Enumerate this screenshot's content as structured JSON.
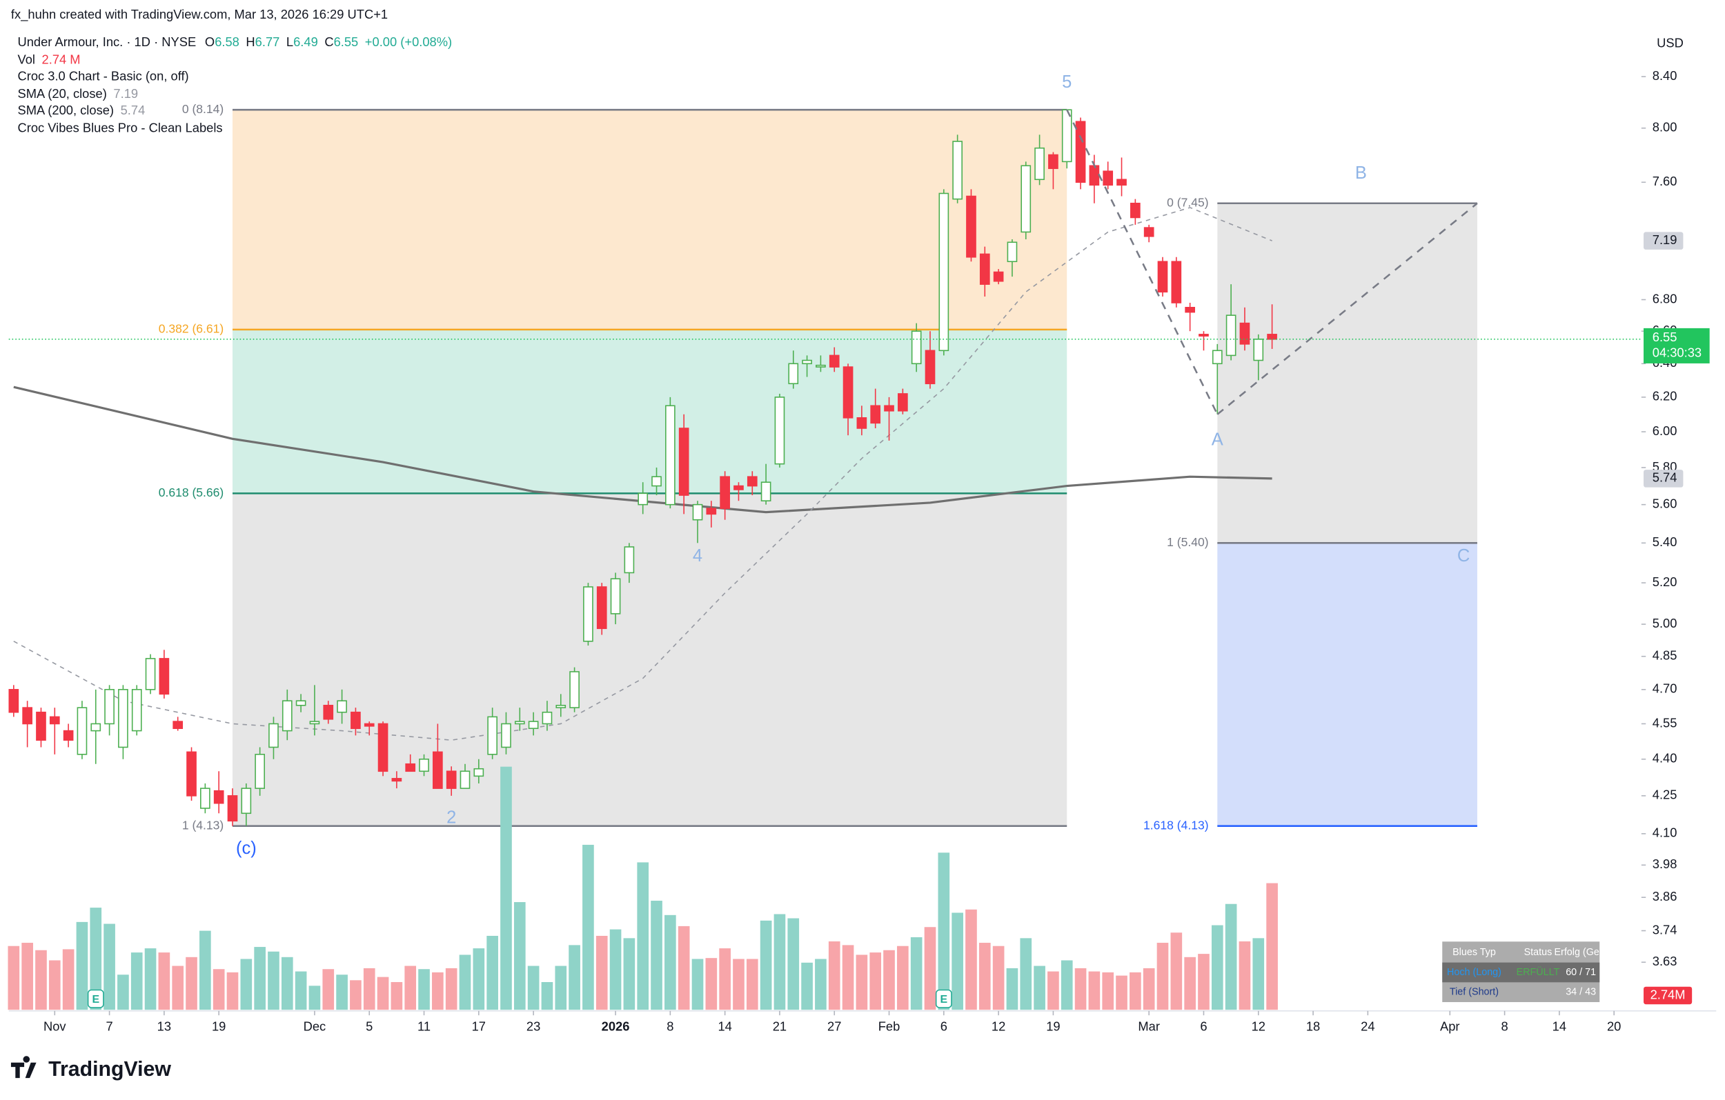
{
  "header": {
    "credit": "fx_huhn created with TradingView.com, Mar 13, 2026 16:29 UTC+1",
    "currency": "USD"
  },
  "legend": {
    "symbol": "Under Armour, Inc. · 1D · NYSE",
    "ohlc_keys": [
      "O",
      "H",
      "L",
      "C"
    ],
    "change": "+0.00 (+0.08%)",
    "vol_name": "Vol",
    "vol_value": "2.74 M",
    "croc_chart": "Croc 3.0 Chart - Basic (on, off)",
    "sma20": "SMA (20, close)",
    "sma200": "SMA (200, close)",
    "croc_vibes": "Croc Vibes Blues Pro - Clean Labels"
  },
  "table": {
    "header": [
      "Blues Typ",
      "Status",
      "Erfolg (Ges)"
    ],
    "rows": [
      {
        "type": "Hoch (Long)",
        "status": "ERFÜLLT",
        "success": "60 / 71"
      },
      {
        "type": "Tief (Short)",
        "success": "34 / 43"
      }
    ]
  },
  "footer": {
    "logo": "TradingView"
  },
  "chart_data": {
    "type": "candlestick",
    "log": true,
    "grid": false,
    "up_color": "#4caf50",
    "down_color": "#f23645",
    "volume_up_color": "#8fd3c8",
    "volume_down_color": "#f7a5a9",
    "x": [
      0,
      1,
      2,
      3,
      4,
      5,
      6,
      7,
      8,
      9,
      10,
      11,
      12,
      13,
      14,
      15,
      16,
      17,
      18,
      19,
      20,
      21,
      22,
      23,
      24,
      25,
      26,
      27,
      28,
      29,
      30,
      31,
      32,
      33,
      34,
      35,
      36,
      37,
      38,
      39,
      40,
      41,
      42,
      43,
      44,
      45,
      46,
      47,
      48,
      49,
      50,
      51,
      52,
      53,
      54,
      55,
      56,
      57,
      58,
      59,
      60,
      61,
      62,
      63,
      64,
      65,
      66,
      67,
      68,
      69,
      70,
      71,
      72,
      73,
      74,
      75,
      76,
      77,
      78,
      79,
      80,
      81,
      82,
      83,
      84,
      85,
      86,
      87,
      88,
      89,
      90,
      91,
      92
    ],
    "open": [
      4.7,
      4.62,
      4.6,
      4.58,
      4.52,
      4.42,
      4.52,
      4.55,
      4.45,
      4.52,
      4.7,
      4.84,
      4.56,
      4.43,
      4.2,
      4.27,
      4.25,
      4.18,
      4.28,
      4.45,
      4.52,
      4.63,
      4.55,
      4.63,
      4.6,
      4.6,
      4.55,
      4.55,
      4.32,
      4.38,
      4.35,
      4.43,
      4.35,
      4.28,
      4.33,
      4.42,
      4.45,
      4.55,
      4.53,
      4.55,
      4.62,
      4.62,
      4.92,
      5.18,
      5.05,
      5.25,
      5.6,
      5.7,
      5.6,
      6.02,
      5.52,
      5.58,
      5.75,
      5.7,
      5.75,
      5.62,
      5.82,
      6.28,
      6.4,
      6.38,
      6.45,
      6.38,
      6.08,
      6.15,
      6.15,
      6.22,
      6.4,
      6.48,
      6.48,
      7.48,
      7.5,
      7.1,
      6.98,
      7.05,
      7.25,
      7.62,
      7.8,
      7.75,
      8.05,
      7.72,
      7.68,
      7.62,
      7.45,
      7.28,
      7.05,
      7.05,
      6.75,
      6.58,
      6.4,
      6.45,
      6.65,
      6.42,
      6.58
    ],
    "high": [
      4.72,
      4.65,
      4.62,
      4.62,
      4.55,
      4.65,
      4.7,
      4.72,
      4.72,
      4.72,
      4.86,
      4.88,
      4.58,
      4.45,
      4.3,
      4.35,
      4.28,
      4.3,
      4.45,
      4.58,
      4.7,
      4.68,
      4.72,
      4.65,
      4.7,
      4.62,
      4.56,
      4.56,
      4.35,
      4.42,
      4.42,
      4.55,
      4.37,
      4.38,
      4.4,
      4.62,
      4.6,
      4.62,
      4.6,
      4.65,
      4.68,
      4.8,
      5.2,
      5.2,
      5.25,
      5.4,
      5.72,
      5.8,
      6.2,
      6.1,
      5.62,
      5.62,
      5.78,
      5.72,
      5.78,
      5.82,
      6.22,
      6.48,
      6.45,
      6.45,
      6.5,
      6.4,
      6.15,
      6.25,
      6.2,
      6.25,
      6.65,
      6.6,
      7.55,
      7.95,
      7.55,
      7.15,
      7.0,
      7.2,
      7.75,
      7.95,
      7.82,
      8.14,
      8.08,
      7.8,
      7.75,
      7.78,
      7.48,
      7.3,
      7.08,
      7.08,
      6.78,
      6.6,
      6.52,
      6.9,
      6.75,
      6.58,
      6.77
    ],
    "low": [
      4.58,
      4.45,
      4.45,
      4.42,
      4.45,
      4.4,
      4.38,
      4.5,
      4.4,
      4.5,
      4.68,
      4.66,
      4.52,
      4.23,
      4.18,
      4.18,
      4.13,
      4.13,
      4.25,
      4.4,
      4.48,
      4.6,
      4.5,
      4.55,
      4.55,
      4.5,
      4.5,
      4.33,
      4.28,
      4.35,
      4.33,
      4.28,
      4.25,
      4.28,
      4.3,
      4.4,
      4.42,
      4.52,
      4.5,
      4.52,
      4.58,
      4.6,
      4.9,
      4.95,
      5.0,
      5.2,
      5.55,
      5.65,
      5.58,
      5.55,
      5.4,
      5.48,
      5.52,
      5.62,
      5.65,
      5.6,
      5.8,
      6.25,
      6.32,
      6.35,
      6.35,
      5.98,
      5.98,
      6.02,
      5.95,
      6.1,
      6.35,
      6.25,
      6.45,
      7.45,
      7.05,
      6.82,
      6.9,
      6.95,
      7.2,
      7.58,
      7.55,
      7.7,
      7.55,
      7.45,
      7.55,
      7.5,
      7.3,
      7.18,
      6.82,
      6.75,
      6.6,
      6.48,
      6.1,
      6.42,
      6.48,
      6.3,
      6.49
    ],
    "close": [
      4.6,
      4.55,
      4.48,
      4.55,
      4.48,
      4.62,
      4.55,
      4.7,
      4.7,
      4.7,
      4.84,
      4.68,
      4.53,
      4.25,
      4.28,
      4.22,
      4.15,
      4.28,
      4.42,
      4.55,
      4.65,
      4.65,
      4.56,
      4.57,
      4.65,
      4.53,
      4.54,
      4.35,
      4.31,
      4.35,
      4.4,
      4.28,
      4.28,
      4.35,
      4.36,
      4.58,
      4.55,
      4.56,
      4.56,
      4.6,
      4.63,
      4.78,
      5.18,
      4.98,
      5.22,
      5.38,
      5.66,
      5.75,
      6.15,
      5.65,
      5.6,
      5.55,
      5.58,
      5.68,
      5.7,
      5.72,
      6.2,
      6.4,
      6.42,
      6.39,
      6.38,
      6.08,
      6.02,
      6.05,
      6.12,
      6.12,
      6.6,
      6.28,
      7.52,
      7.9,
      7.08,
      6.9,
      6.92,
      7.18,
      7.72,
      7.85,
      7.7,
      8.14,
      7.6,
      7.58,
      7.58,
      7.58,
      7.35,
      7.22,
      6.85,
      6.78,
      6.72,
      6.57,
      6.48,
      6.7,
      6.52,
      6.55,
      6.55
    ],
    "volume": [
      1.38,
      1.45,
      1.29,
      1.07,
      1.31,
      1.9,
      2.21,
      1.86,
      0.76,
      1.24,
      1.33,
      1.24,
      0.95,
      1.14,
      1.71,
      0.88,
      0.81,
      1.1,
      1.36,
      1.26,
      1.14,
      0.83,
      0.52,
      0.88,
      0.76,
      0.64,
      0.9,
      0.71,
      0.6,
      0.95,
      0.88,
      0.81,
      0.9,
      1.19,
      1.33,
      1.6,
      5.26,
      2.33,
      0.95,
      0.6,
      0.95,
      1.4,
      3.57,
      1.6,
      1.74,
      1.55,
      3.19,
      2.36,
      2.05,
      1.81,
      1.1,
      1.12,
      1.33,
      1.1,
      1.1,
      1.93,
      2.07,
      1.98,
      1.02,
      1.1,
      1.48,
      1.4,
      1.19,
      1.24,
      1.29,
      1.38,
      1.57,
      1.79,
      3.4,
      2.1,
      2.17,
      1.45,
      1.38,
      0.9,
      1.55,
      0.95,
      0.83,
      1.07,
      0.9,
      0.83,
      0.81,
      0.74,
      0.81,
      0.9,
      1.45,
      1.67,
      1.14,
      1.21,
      1.83,
      2.29,
      1.48,
      1.55,
      2.74
    ],
    "volume_label": "2.74M",
    "countdown": "04:30:33",
    "sma20": {
      "color": "#9598a1",
      "x": [
        0,
        8,
        16,
        24,
        32,
        40,
        46,
        52,
        58,
        62,
        68,
        74,
        80,
        86,
        92
      ],
      "values": [
        4.92,
        4.65,
        4.55,
        4.52,
        4.48,
        4.55,
        4.75,
        5.15,
        5.55,
        5.85,
        6.25,
        6.85,
        7.25,
        7.42,
        7.19
      ]
    },
    "sma200": {
      "color": "#6f6f6f",
      "x": [
        0,
        16,
        27,
        38,
        55,
        67,
        77,
        86,
        92
      ],
      "values": [
        6.26,
        5.96,
        5.83,
        5.67,
        5.56,
        5.61,
        5.7,
        5.75,
        5.74
      ]
    },
    "fib_left": {
      "x": [
        16,
        77
      ],
      "fills": [
        "#fde8cf",
        "#d2efe6",
        "#e6e6e6"
      ],
      "levels": [
        {
          "value": 8.14,
          "label": "0 (8.14)",
          "color": "#787b86"
        },
        {
          "value": 6.61,
          "label": "0.382 (6.61)",
          "color": "#f5a623"
        },
        {
          "value": 5.66,
          "label": "0.618 (5.66)",
          "color": "#1e8c6e"
        },
        {
          "value": 4.13,
          "label": "1 (4.13)",
          "color": "#787b86"
        }
      ]
    },
    "fib_right": {
      "x": [
        88,
        107
      ],
      "fills": [
        "#e6e6e6",
        "#d3defb"
      ],
      "levels": [
        {
          "value": 7.45,
          "label": "0 (7.45)",
          "color": "#787b86"
        },
        {
          "value": 5.4,
          "label": "1 (5.40)",
          "color": "#787b86"
        },
        {
          "value": 4.13,
          "label": "1.618 (4.13)",
          "color": "#2962ff"
        }
      ]
    },
    "trend_lines": [
      {
        "x": [
          77,
          88
        ],
        "y": [
          8.14,
          6.1
        ]
      },
      {
        "x": [
          88,
          107
        ],
        "y": [
          6.1,
          7.45
        ]
      }
    ],
    "wave_labels": [
      {
        "label": "5",
        "x": 77,
        "y": 8.35,
        "color": "#8fb4e6"
      },
      {
        "label": "4",
        "x": 50,
        "y": 5.33,
        "color": "#8fb4e6"
      },
      {
        "label": "2",
        "x": 32,
        "y": 4.16,
        "color": "#8fb4e6"
      },
      {
        "label": "(c)",
        "x": 17,
        "y": 4.04,
        "color": "#2962ff"
      },
      {
        "label": "A",
        "x": 88,
        "y": 5.95,
        "color": "#8fb4e6"
      },
      {
        "label": "B",
        "x": 98.5,
        "y": 7.66,
        "color": "#8fb4e6"
      },
      {
        "label": "C",
        "x": 106,
        "y": 5.33,
        "color": "#8fb4e6"
      }
    ],
    "events": [
      {
        "x": 6,
        "label": "E"
      },
      {
        "x": 68,
        "label": "E"
      }
    ],
    "xlim": [
      -1,
      119
    ],
    "xticks": [
      {
        "value": 3,
        "label": "Nov"
      },
      {
        "value": 7,
        "label": "7"
      },
      {
        "value": 11,
        "label": "13"
      },
      {
        "value": 15,
        "label": "19"
      },
      {
        "value": 22,
        "label": "Dec"
      },
      {
        "value": 26,
        "label": "5"
      },
      {
        "value": 30,
        "label": "11"
      },
      {
        "value": 34,
        "label": "17"
      },
      {
        "value": 38,
        "label": "23"
      },
      {
        "value": 44,
        "label": "2026"
      },
      {
        "value": 48,
        "label": "8"
      },
      {
        "value": 52,
        "label": "14"
      },
      {
        "value": 56,
        "label": "21"
      },
      {
        "value": 60,
        "label": "27"
      },
      {
        "value": 64,
        "label": "Feb"
      },
      {
        "value": 68,
        "label": "6"
      },
      {
        "value": 72,
        "label": "12"
      },
      {
        "value": 76,
        "label": "19"
      },
      {
        "value": 83,
        "label": "Mar"
      },
      {
        "value": 87,
        "label": "6"
      },
      {
        "value": 91,
        "label": "12"
      },
      {
        "value": 95,
        "label": "18"
      },
      {
        "value": 99,
        "label": "24"
      },
      {
        "value": 105,
        "label": "Apr"
      },
      {
        "value": 109,
        "label": "8"
      },
      {
        "value": 113,
        "label": "14"
      },
      {
        "value": 117,
        "label": "20"
      }
    ],
    "ylim": [
      3.47,
      8.8
    ],
    "yticks": [
      {
        "value": 8.4,
        "label": "8.40"
      },
      {
        "value": 8,
        "label": "8.00"
      },
      {
        "value": 7.6,
        "label": "7.60"
      },
      {
        "value": 6.8,
        "label": "6.80"
      },
      {
        "value": 6.6,
        "label": "6.60"
      },
      {
        "value": 6.4,
        "label": "6.40"
      },
      {
        "value": 6.2,
        "label": "6.20"
      },
      {
        "value": 6,
        "label": "6.00"
      },
      {
        "value": 5.8,
        "label": "5.80"
      },
      {
        "value": 5.6,
        "label": "5.60"
      },
      {
        "value": 5.4,
        "label": "5.40"
      },
      {
        "value": 5.2,
        "label": "5.20"
      },
      {
        "value": 5,
        "label": "5.00"
      },
      4.85,
      {
        "value": 4.7,
        "label": "4.70"
      },
      4.55,
      {
        "value": 4.4,
        "label": "4.40"
      },
      4.25,
      {
        "value": 4.1,
        "label": "4.10"
      },
      3.98,
      3.86,
      3.74,
      3.63
    ]
  }
}
